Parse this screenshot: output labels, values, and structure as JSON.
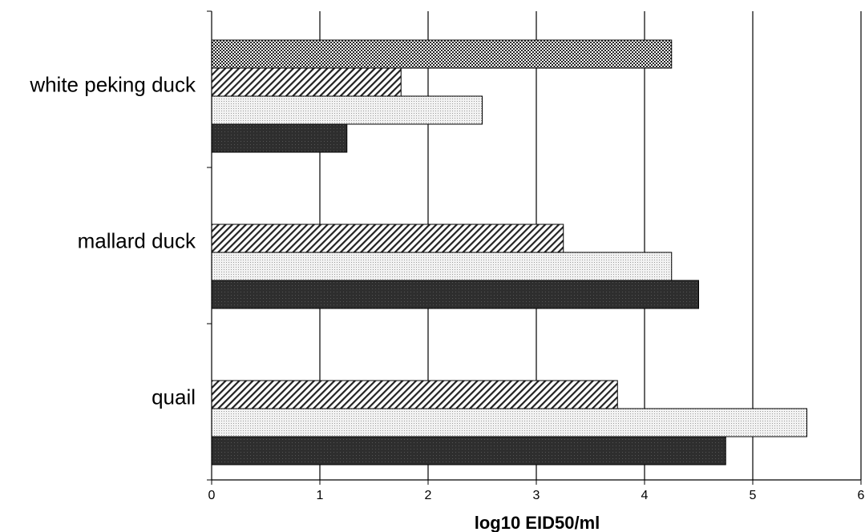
{
  "chart_data": {
    "type": "bar",
    "orientation": "horizontal",
    "title": "",
    "xlabel": "log10 EID50/ml",
    "ylabel": "",
    "xlim": [
      0,
      6
    ],
    "xticks": [
      "0",
      "1",
      "2",
      "3",
      "4",
      "5",
      "6"
    ],
    "grid": "vertical major gridlines",
    "legend": "none",
    "categories": [
      "white peking duck",
      "mallard duck",
      "quail"
    ],
    "series": [
      {
        "pattern": "crosshatch",
        "fill": "#3a3a3a",
        "values": [
          4.25,
          null,
          null
        ]
      },
      {
        "pattern": "diagonal",
        "fill": "#555555",
        "values": [
          1.75,
          3.25,
          3.75
        ]
      },
      {
        "pattern": "dotted",
        "fill": "#dddddd",
        "values": [
          2.5,
          4.25,
          5.5
        ]
      },
      {
        "pattern": "solid-dark",
        "fill": "#2a2a2a",
        "values": [
          1.25,
          4.5,
          4.75
        ]
      }
    ]
  }
}
